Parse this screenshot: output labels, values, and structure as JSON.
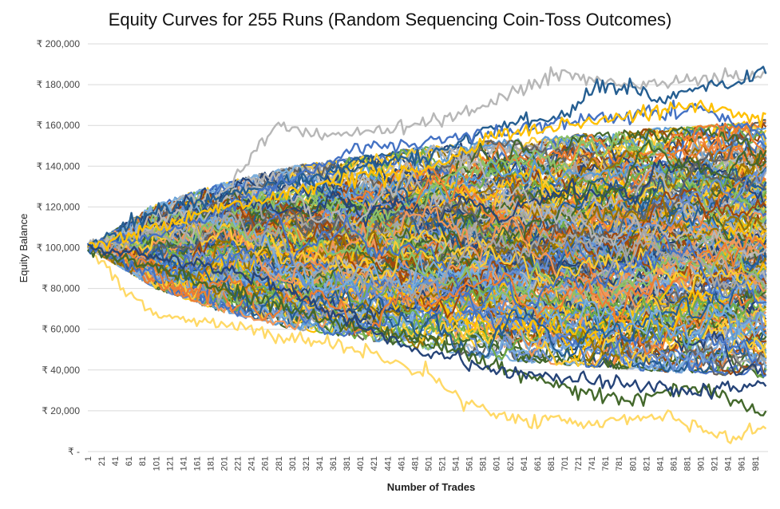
{
  "chart_data": {
    "type": "line",
    "title": "Equity Curves for 255 Runs (Random Sequencing Coin-Toss Outcomes)",
    "xlabel": "Number of Trades",
    "ylabel": "Equity Balance",
    "ylim": [
      0,
      200000
    ],
    "xlim": [
      1,
      1000
    ],
    "grid": "horizontal",
    "legend": "none",
    "y_ticks": [
      0,
      20000,
      40000,
      60000,
      80000,
      100000,
      120000,
      140000,
      160000,
      180000,
      200000
    ],
    "y_tick_labels": [
      "₹ -",
      "₹ 20,000",
      "₹ 40,000",
      "₹ 60,000",
      "₹ 80,000",
      "₹ 100,000",
      "₹ 120,000",
      "₹ 140,000",
      "₹ 160,000",
      "₹ 180,000",
      "₹ 200,000"
    ],
    "x_tick_labels": [
      "1",
      "21",
      "41",
      "61",
      "81",
      "101",
      "121",
      "141",
      "161",
      "181",
      "201",
      "221",
      "241",
      "261",
      "281",
      "301",
      "321",
      "341",
      "361",
      "381",
      "401",
      "421",
      "441",
      "461",
      "481",
      "501",
      "521",
      "541",
      "561",
      "581",
      "601",
      "621",
      "641",
      "661",
      "681",
      "701",
      "721",
      "741",
      "761",
      "781",
      "801",
      "821",
      "841",
      "861",
      "881",
      "901",
      "921",
      "941",
      "961",
      "981"
    ],
    "run_count": 255,
    "start_value": 100000,
    "colors": [
      "#4472c4",
      "#ed7d31",
      "#a5a5a5",
      "#ffc000",
      "#5b9bd5",
      "#70ad47",
      "#264478",
      "#9e480e",
      "#636363",
      "#997300",
      "#255e91",
      "#43682b",
      "#698ed0",
      "#f1975a",
      "#b7b7b7",
      "#ffcd33",
      "#7cafdd",
      "#8cc168"
    ],
    "highlight_series": [
      {
        "name": "",
        "x": [
          1,
          100,
          200,
          280,
          350,
          450,
          550,
          650,
          700,
          750,
          800,
          900,
          1000
        ],
        "values": [
          100000,
          112000,
          128000,
          160000,
          155000,
          158000,
          165000,
          180000,
          185000,
          182000,
          180000,
          183000,
          185000
        ]
      },
      {
        "name": "",
        "x": [
          1,
          100,
          200,
          300,
          400,
          500,
          600,
          700,
          750,
          800,
          850,
          900,
          950,
          1000
        ],
        "values": [
          100000,
          118000,
          126000,
          133000,
          140000,
          145000,
          160000,
          165000,
          180000,
          178000,
          172000,
          180000,
          178000,
          190000
        ]
      },
      {
        "name": "",
        "x": [
          1,
          50,
          100,
          200,
          300,
          400,
          500,
          550,
          600,
          650,
          700,
          750,
          800,
          850,
          900,
          950,
          1000
        ],
        "values": [
          100000,
          80000,
          68000,
          62000,
          56000,
          50000,
          38000,
          26000,
          18000,
          14000,
          16000,
          14000,
          16000,
          18000,
          12000,
          6000,
          14000
        ]
      },
      {
        "name": "",
        "x": [
          1,
          100,
          200,
          300,
          400,
          500,
          600,
          700,
          750,
          800,
          850,
          900,
          950,
          1000
        ],
        "values": [
          100000,
          90000,
          80000,
          70000,
          60000,
          55000,
          42000,
          32000,
          28000,
          25000,
          30000,
          32000,
          24000,
          18000
        ]
      },
      {
        "name": "",
        "x": [
          1,
          100,
          200,
          300,
          400,
          500,
          600,
          700,
          800,
          900,
          1000
        ],
        "values": [
          100000,
          106000,
          118000,
          134000,
          148000,
          152000,
          156000,
          162000,
          165000,
          168000,
          155000
        ]
      },
      {
        "name": "",
        "x": [
          1,
          100,
          200,
          300,
          400,
          500,
          600,
          700,
          800,
          900,
          1000
        ],
        "values": [
          100000,
          110000,
          120000,
          128000,
          135000,
          138000,
          155000,
          160000,
          165000,
          170000,
          162000
        ]
      },
      {
        "name": "",
        "x": [
          1,
          100,
          200,
          300,
          400,
          500,
          600,
          700,
          800,
          900,
          1000
        ],
        "values": [
          100000,
          96000,
          90000,
          78000,
          62000,
          48000,
          40000,
          36000,
          32000,
          30000,
          33000
        ]
      }
    ],
    "band": {
      "x": [
        1,
        100,
        200,
        300,
        400,
        500,
        600,
        700,
        800,
        900,
        1000
      ],
      "upper": [
        100000,
        122000,
        132000,
        140000,
        145000,
        150000,
        153000,
        155000,
        158000,
        160000,
        163000
      ],
      "lower": [
        100000,
        80000,
        68000,
        60000,
        55000,
        50000,
        45000,
        42000,
        40000,
        38000,
        36000
      ]
    }
  }
}
